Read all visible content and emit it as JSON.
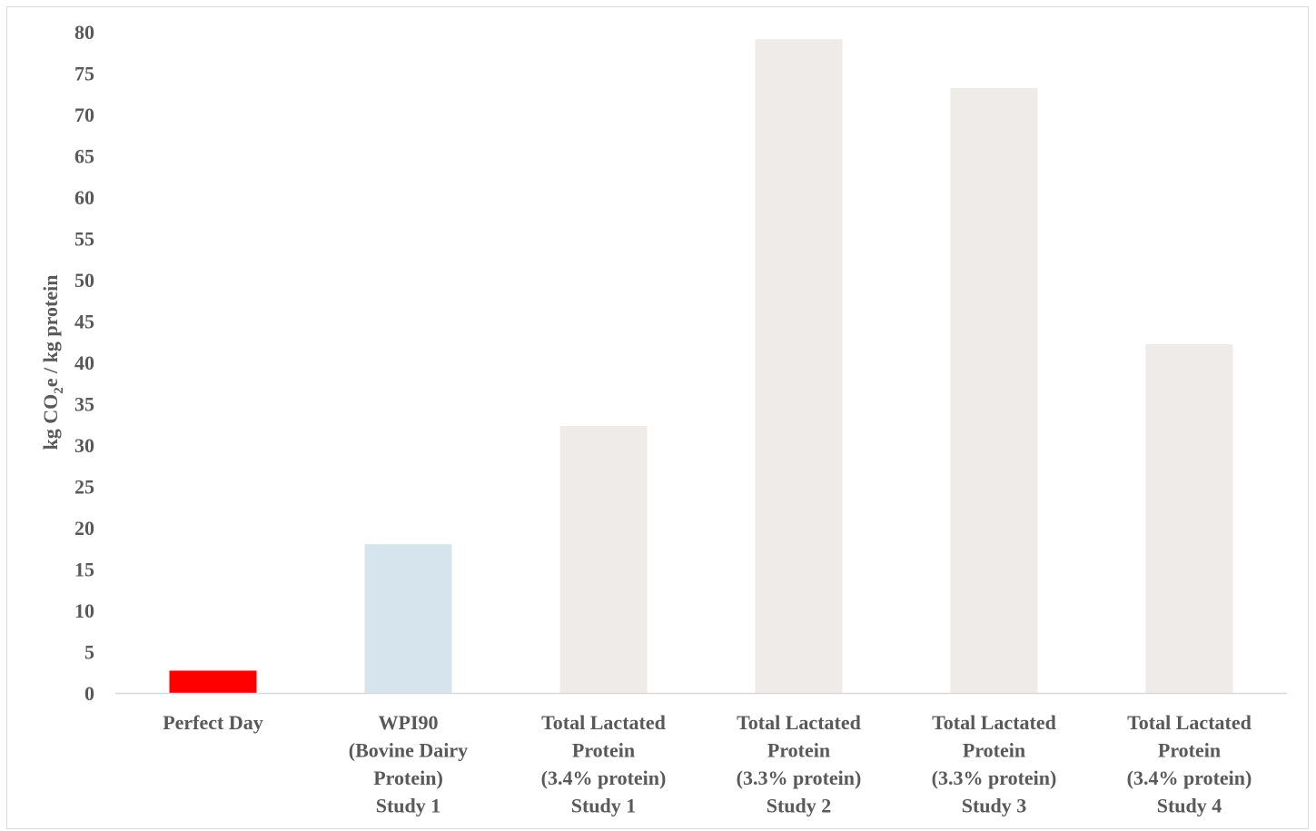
{
  "chart_data": {
    "type": "bar",
    "categories": [
      [
        "Perfect Day"
      ],
      [
        "WPI90",
        "(Bovine Dairy",
        "Protein)",
        "Study 1"
      ],
      [
        "Total Lactated",
        "Protein",
        "(3.4% protein)",
        "Study 1"
      ],
      [
        "Total Lactated",
        "Protein",
        "(3.3% protein)",
        "Study 2"
      ],
      [
        "Total Lactated",
        "Protein",
        "(3.3% protein)",
        "Study 3"
      ],
      [
        "Total Lactated",
        "Protein",
        "(3.4% protein)",
        "Study 4"
      ]
    ],
    "values": [
      2.7,
      18,
      32.3,
      79.1,
      73.2,
      42.2
    ],
    "colors": [
      "#ff0000",
      "#d6e4ee",
      "#eeebe8",
      "#eeebe8",
      "#eeebe8",
      "#eeebe8"
    ],
    "title": "",
    "xlabel": "",
    "ylabel": {
      "pre": "kg CO",
      "sub": "2",
      "post": "e / kg protein"
    },
    "ylim": [
      0,
      80
    ],
    "yticks": [
      0,
      5,
      10,
      15,
      20,
      25,
      30,
      35,
      40,
      45,
      50,
      55,
      60,
      65,
      70,
      75,
      80
    ],
    "grid": false,
    "legend": "none"
  }
}
